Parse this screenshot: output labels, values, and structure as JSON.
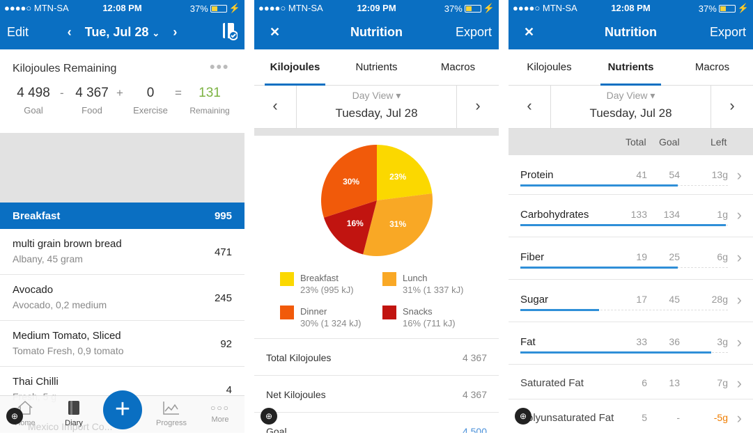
{
  "status": {
    "carrier": "●●●●○ MTN-SA",
    "battery": "37%",
    "s1_time": "12:08 PM",
    "s2_time": "12:09 PM",
    "s3_time": "12:08 PM"
  },
  "diary": {
    "edit": "Edit",
    "date": "Tue, Jul 28",
    "remaining_title": "Kilojoules Remaining",
    "goal": "4 498",
    "goal_label": "Goal",
    "minus": "-",
    "food": "4 367",
    "food_label": "Food",
    "plus": "+",
    "exercise": "0",
    "exercise_label": "Exercise",
    "equals": "=",
    "remaining": "131",
    "remaining_label": "Remaining",
    "meal": {
      "name": "Breakfast",
      "total": "995"
    },
    "items": [
      {
        "name": "multi grain brown bread",
        "desc": "Albany, 45 gram",
        "kj": "471"
      },
      {
        "name": "Avocado",
        "desc": "Avocado, 0,2 medium",
        "kj": "245"
      },
      {
        "name": "Medium Tomato, Sliced",
        "desc": "Tomato Fresh, 0,9 tomato",
        "kj": "92"
      },
      {
        "name": "Thai Chilli",
        "desc": "Fresh, 5 g",
        "kj": "4"
      }
    ],
    "tabbar": {
      "home": "Home",
      "diary": "Diary",
      "progress": "Progress",
      "more": "More"
    },
    "ghost_text": "Mexico Import Co...",
    "accent": "#0a6fc2",
    "remaining_color": "#7cb342"
  },
  "nutrition": {
    "close": "✕",
    "title": "Nutrition",
    "export": "Export",
    "tabs": [
      "Kilojoules",
      "Nutrients",
      "Macros"
    ],
    "day_view": "Day View ▾",
    "day_date": "Tuesday, Jul 28",
    "legend": [
      {
        "name": "Breakfast",
        "detail": "23% (995 kJ)",
        "color": "#fbd800"
      },
      {
        "name": "Lunch",
        "detail": "31% (1 337 kJ)",
        "color": "#f9a825"
      },
      {
        "name": "Dinner",
        "detail": "30% (1 324 kJ)",
        "color": "#f15a0a"
      },
      {
        "name": "Snacks",
        "detail": "16% (711 kJ)",
        "color": "#c11410"
      }
    ],
    "rows": [
      {
        "label": "Total Kilojoules",
        "value": "4 367"
      },
      {
        "label": "Net Kilojoules",
        "value": "4 367"
      },
      {
        "label": "Goal",
        "value": "4 500"
      }
    ]
  },
  "chart_data": {
    "type": "pie",
    "categories": [
      "Breakfast",
      "Lunch",
      "Snacks",
      "Dinner"
    ],
    "values": [
      23,
      31,
      16,
      30
    ],
    "labels": [
      "23%",
      "31%",
      "16%",
      "30%"
    ],
    "colors": [
      "#fbd800",
      "#f9a825",
      "#c11410",
      "#f15a0a"
    ]
  },
  "nutrients": {
    "headers": {
      "total": "Total",
      "goal": "Goal",
      "left": "Left"
    },
    "rows": [
      {
        "name": "Protein",
        "total": "41",
        "goal": "54",
        "left": "13g",
        "fill": 0.76,
        "bar": true
      },
      {
        "name": "Carbohydrates",
        "total": "133",
        "goal": "134",
        "left": "1g",
        "fill": 0.99,
        "bar": true
      },
      {
        "name": "Fiber",
        "total": "19",
        "goal": "25",
        "left": "6g",
        "fill": 0.76,
        "bar": true
      },
      {
        "name": "Sugar",
        "total": "17",
        "goal": "45",
        "left": "28g",
        "fill": 0.38,
        "bar": true
      },
      {
        "name": "Fat",
        "total": "33",
        "goal": "36",
        "left": "3g",
        "fill": 0.92,
        "bar": true
      },
      {
        "name": "Saturated Fat",
        "total": "6",
        "goal": "13",
        "left": "7g",
        "fill": 0,
        "bar": false
      },
      {
        "name": "Polyunsaturated Fat",
        "total": "5",
        "goal": "-",
        "left": "-5g",
        "fill": 0,
        "bar": false,
        "left_color": "#ef7d00"
      }
    ]
  }
}
